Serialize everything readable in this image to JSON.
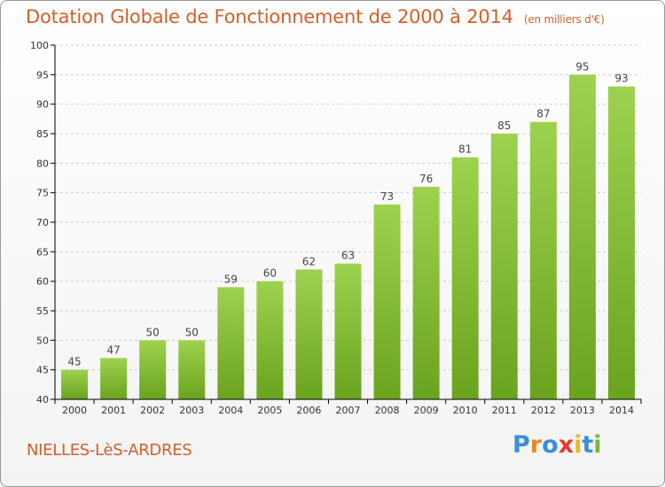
{
  "title": "Dotation Globale de Fonctionnement de 2000 à 2014",
  "subtitle": "(en milliers d'€)",
  "commune": "NIELLES-LèS-ARDRES",
  "logo": {
    "text": "Proxiti",
    "letters": [
      "P",
      "r",
      "o",
      "x",
      "i",
      "t",
      "i"
    ],
    "colors": [
      "#3a8fd8",
      "#f08a1c",
      "#3a8fd8",
      "#e83a2a",
      "#f0b81c",
      "#3a8fd8",
      "#7ab83a"
    ]
  },
  "colors": {
    "title": "#d1602a",
    "bar_light": "#9ed24e",
    "bar_dark": "#6aa31e",
    "grid": "#cccccc",
    "axis": "#000000"
  },
  "chart_data": {
    "type": "bar",
    "categories": [
      "2000",
      "2001",
      "2002",
      "2003",
      "2004",
      "2005",
      "2006",
      "2007",
      "2008",
      "2009",
      "2010",
      "2011",
      "2012",
      "2013",
      "2014"
    ],
    "values": [
      45,
      47,
      50,
      50,
      59,
      60,
      62,
      63,
      73,
      76,
      81,
      85,
      87,
      95,
      93
    ],
    "ylim": [
      40,
      100
    ],
    "yticks": [
      40,
      45,
      50,
      55,
      60,
      65,
      70,
      75,
      80,
      85,
      90,
      95,
      100
    ],
    "grid": true,
    "data_labels": true
  }
}
